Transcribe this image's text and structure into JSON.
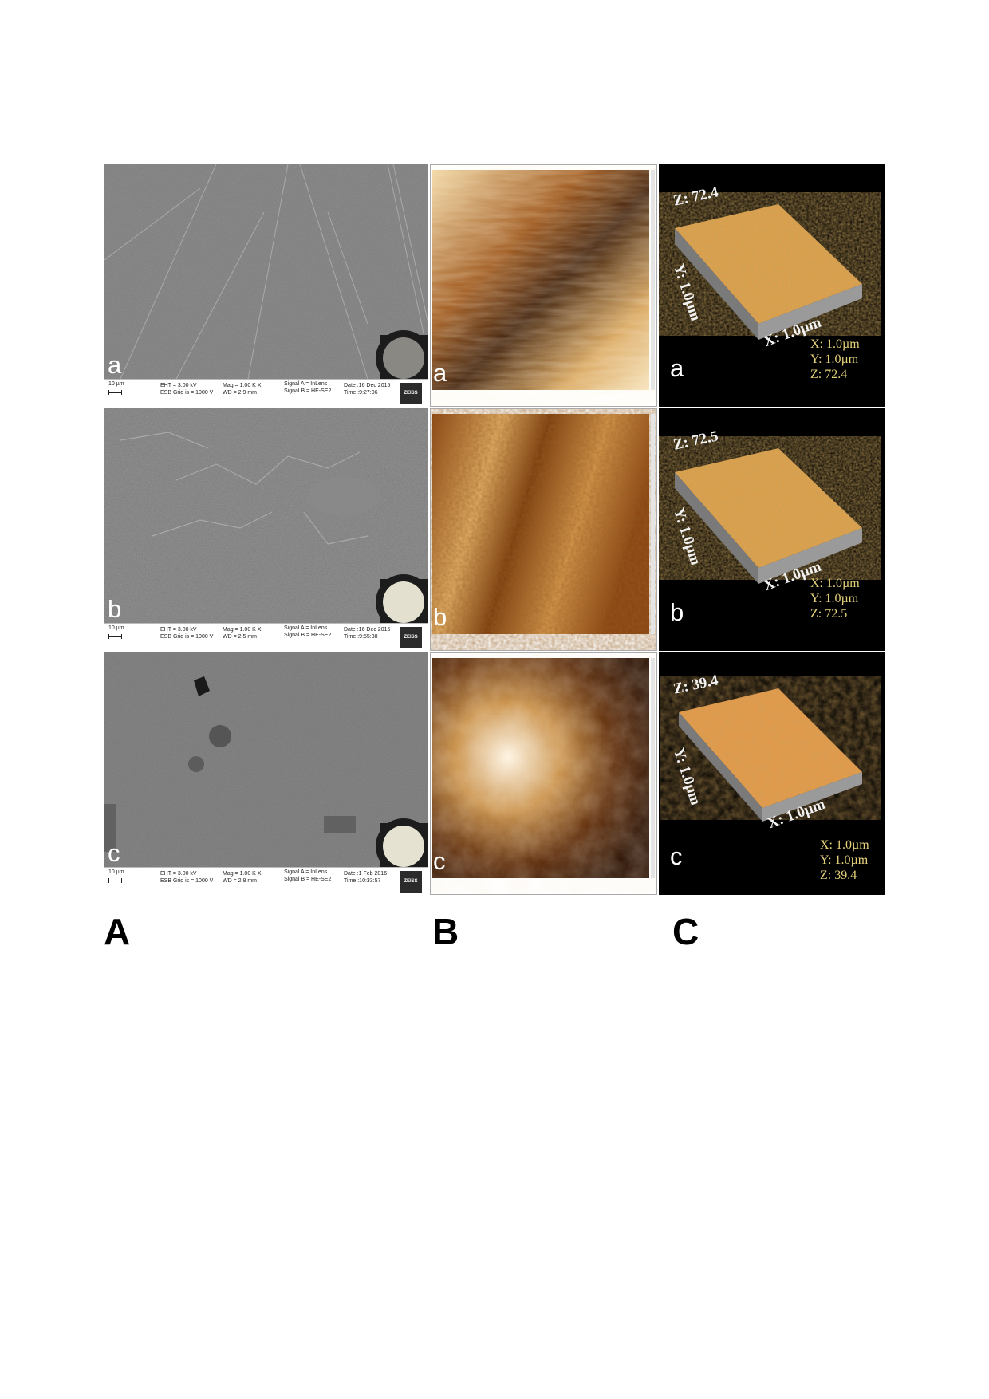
{
  "column_labels": {
    "a_col": "A",
    "b_col": "B",
    "c_col": "C"
  },
  "sem": [
    {
      "label": "a",
      "scale": "10 µm",
      "eht": "EHT = 3.00 kV",
      "esb": "ESB Grid is = 1000 V",
      "mag": "Mag = 1.00 K X",
      "wd": "WD = 2.9 mm",
      "signal_a": "Signal A = InLens",
      "signal_b": "Signal B = HE-SE2",
      "date": "Date :16 Dec 2015",
      "time": "Time :9:27:06",
      "logo": "ZEISS",
      "disk_color": "#8a8882"
    },
    {
      "label": "b",
      "scale": "10 µm",
      "eht": "EHT = 3.00 kV",
      "esb": "ESB Grid is = 1000 V",
      "mag": "Mag = 1.00 K X",
      "wd": "WD = 2.5 mm",
      "signal_a": "Signal A = InLens",
      "signal_b": "Signal B = HE-SE2",
      "date": "Date :16 Dec 2015",
      "time": "Time :9:55:38",
      "logo": "ZEISS",
      "disk_color": "#e4e0cf"
    },
    {
      "label": "c",
      "scale": "10 µm",
      "eht": "EHT = 3.00 kV",
      "esb": "ESB Grid is = 1000 V",
      "mag": "Mag = 1.00 K X",
      "wd": "WD = 2.8 mm",
      "signal_a": "Signal A = InLens",
      "signal_b": "Signal B = HE-SE2",
      "date": "Date :1 Feb 2016",
      "time": "Time :10:33:57",
      "logo": "ZEISS",
      "disk_color": "#e6e2d2"
    }
  ],
  "afm": [
    {
      "label": "a"
    },
    {
      "label": "b"
    },
    {
      "label": "c"
    }
  ],
  "surface3d": [
    {
      "label": "a",
      "z_axis": "Z: 72.4",
      "y_axis": "Y: 1.0µm",
      "x_axis": "X: 1.0µm",
      "x": "X: 1.0µm",
      "y": "Y: 1.0µm",
      "z": "Z: 72.4"
    },
    {
      "label": "b",
      "z_axis": "Z: 72.5",
      "y_axis": "Y: 1.0µm",
      "x_axis": "X: 1.0µm",
      "x": "X: 1.0µm",
      "y": "Y: 1.0µm",
      "z": "Z: 72.5"
    },
    {
      "label": "c",
      "z_axis": "Z: 39.4",
      "y_axis": "Y: 1.0µm",
      "x_axis": "X: 1.0µm",
      "x": "X: 1.0µm",
      "y": "Y: 1.0µm",
      "z": "Z: 39.4"
    }
  ],
  "colors": {
    "afm_dark": "#3a1a05",
    "afm_mid": "#a0581a",
    "afm_light": "#f0d49a",
    "surface": "#e2a04a"
  }
}
